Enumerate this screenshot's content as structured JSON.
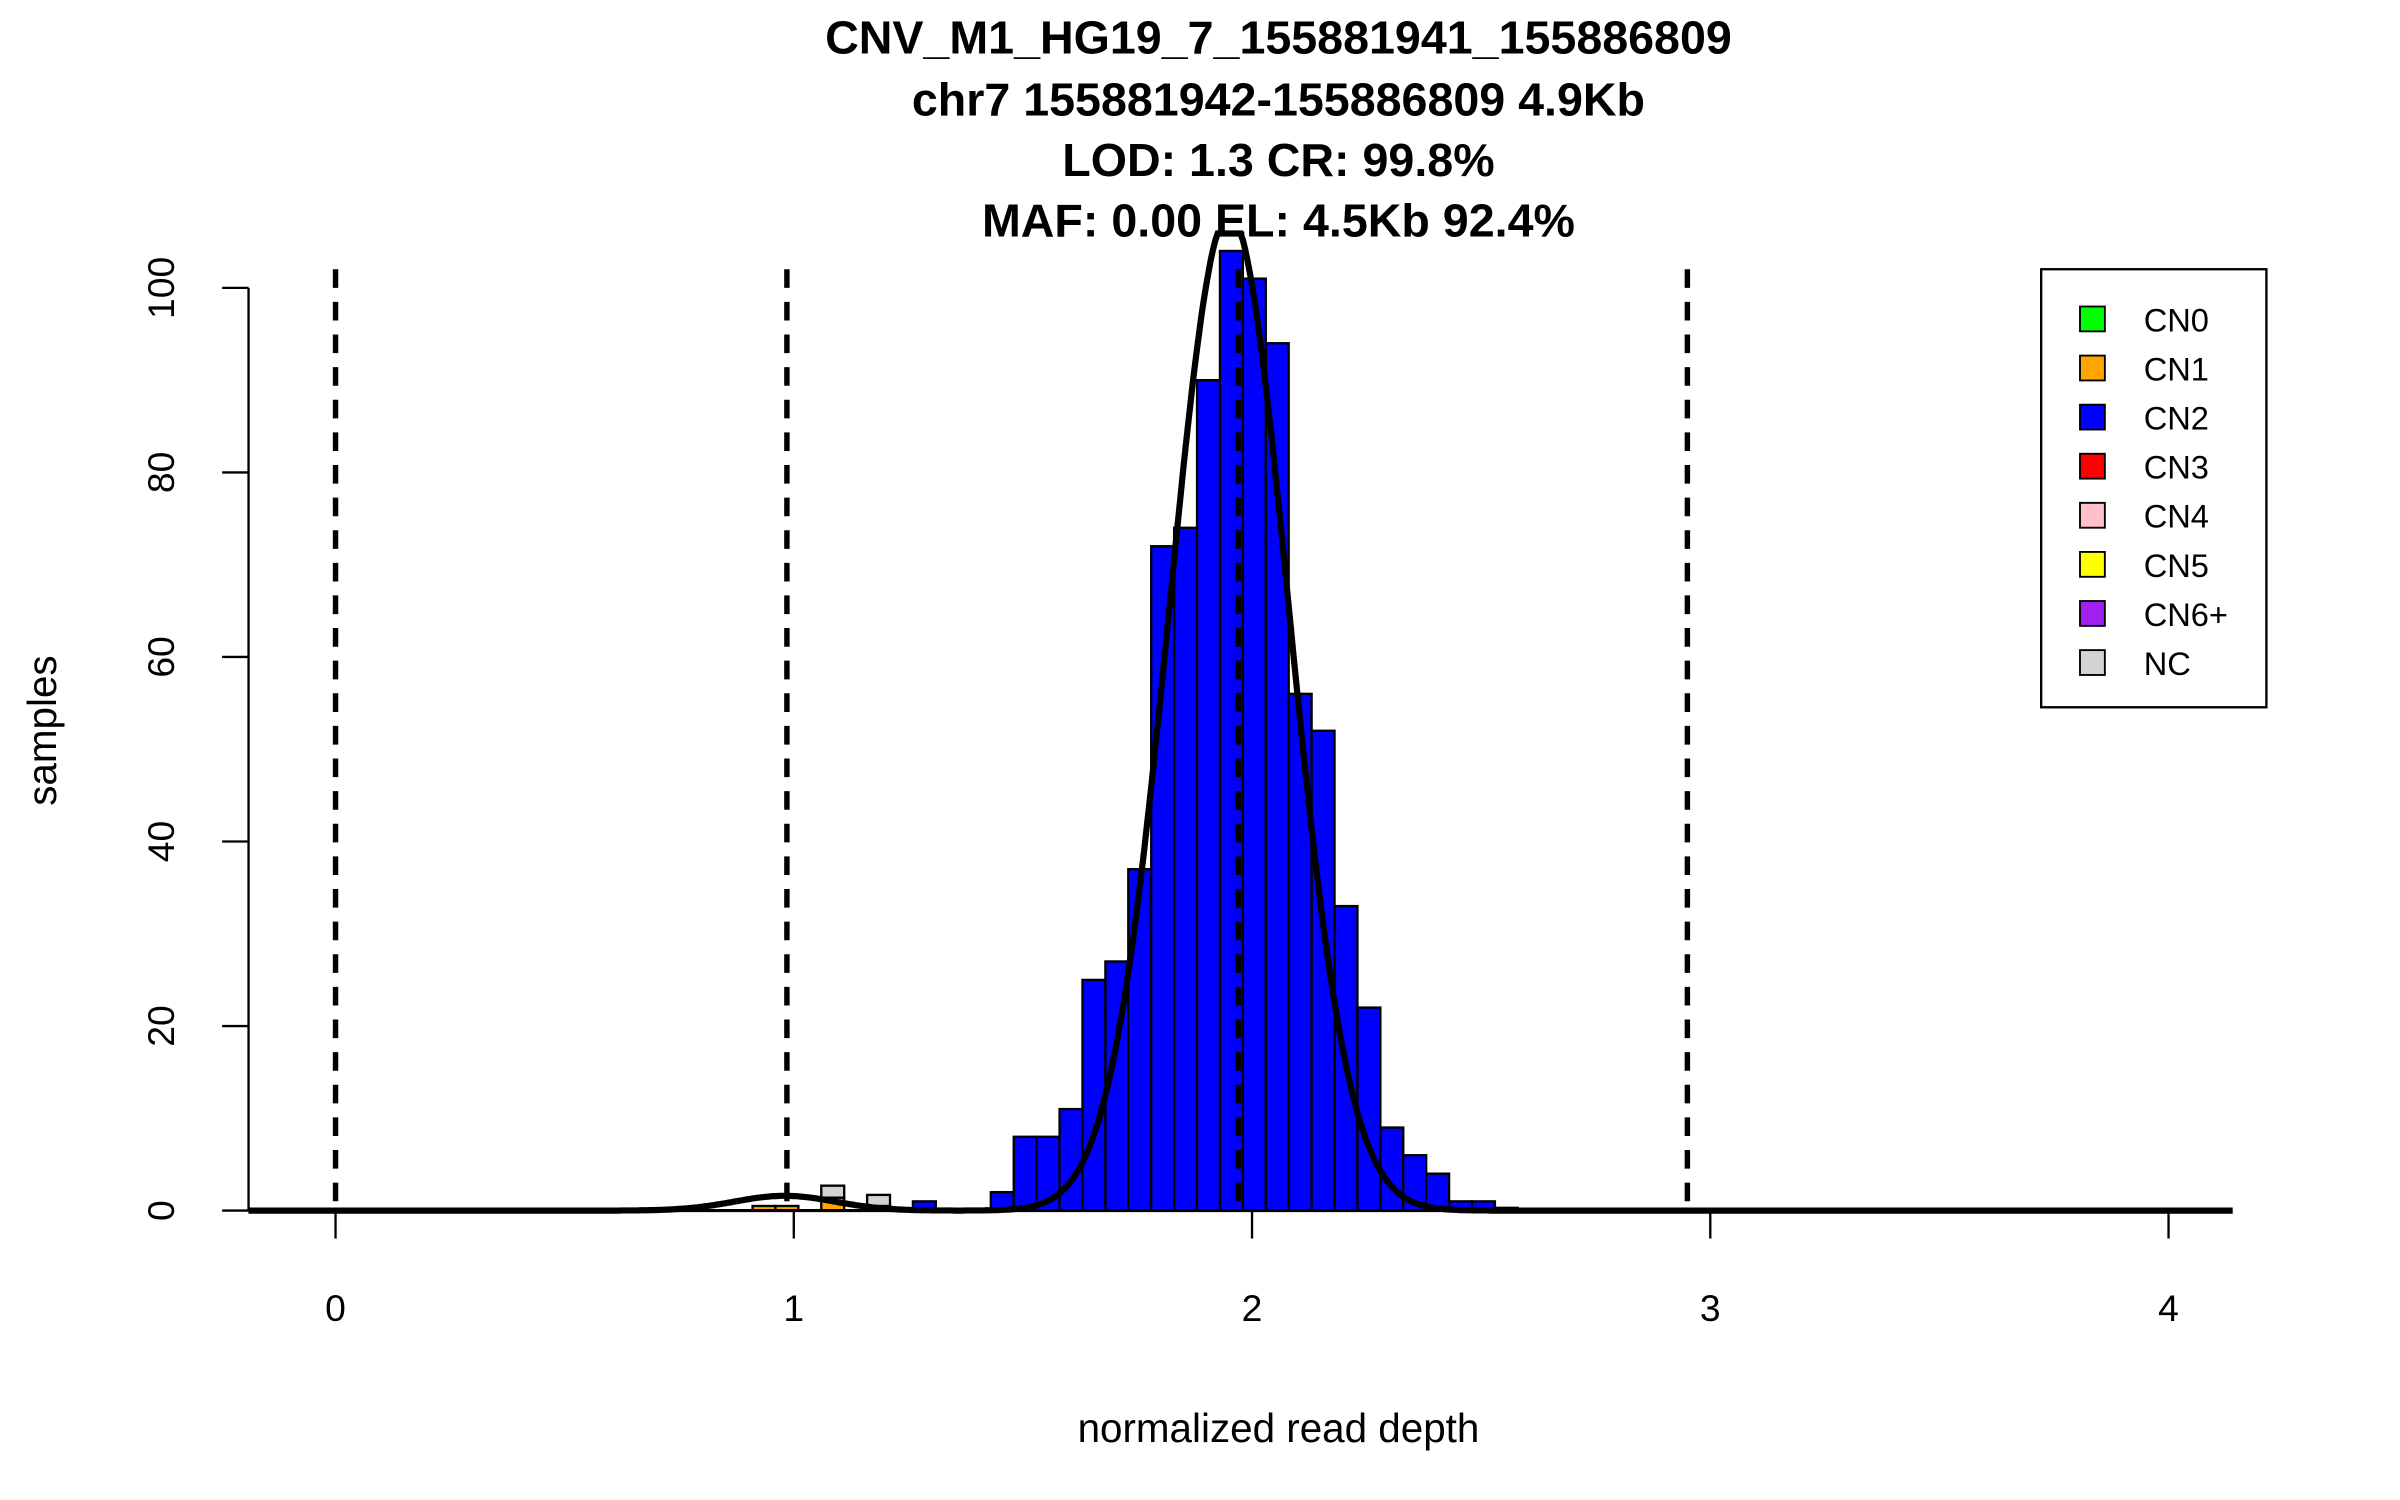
{
  "chart_data": {
    "type": "bar",
    "title_lines": [
      "CNV_M1_HG19_7_155881941_155886809",
      "chr7 155881942-155886809 4.9Kb",
      "LOD: 1.3 CR: 99.8%",
      "MAF: 0.00 EL: 4.5Kb 92.4%"
    ],
    "xlabel": "normalized read depth",
    "ylabel": "samples",
    "xlim": [
      -0.19,
      4.14
    ],
    "ylim": [
      0,
      100
    ],
    "xticks": [
      "0",
      "1",
      "2",
      "3",
      "4"
    ],
    "yticks": [
      "0",
      "20",
      "40",
      "60",
      "80",
      "100"
    ],
    "bin_width": 0.05,
    "bins": [
      {
        "x": 0.91,
        "CN1": 0.5,
        "CN2": 0,
        "NC": 0
      },
      {
        "x": 0.96,
        "CN1": 0.5,
        "CN2": 0,
        "NC": 0
      },
      {
        "x": 1.06,
        "CN1": 1.4,
        "CN2": 0,
        "NC": 1.3
      },
      {
        "x": 1.16,
        "CN1": 0.5,
        "CN2": 0,
        "NC": 1.2
      },
      {
        "x": 1.26,
        "CN1": 0,
        "CN2": 1,
        "NC": 0
      },
      {
        "x": 1.43,
        "CN1": 0,
        "CN2": 2,
        "NC": 0
      },
      {
        "x": 1.48,
        "CN1": 0,
        "CN2": 8,
        "NC": 0
      },
      {
        "x": 1.53,
        "CN1": 0,
        "CN2": 8,
        "NC": 0
      },
      {
        "x": 1.58,
        "CN1": 0,
        "CN2": 11,
        "NC": 0
      },
      {
        "x": 1.63,
        "CN1": 0,
        "CN2": 25,
        "NC": 0
      },
      {
        "x": 1.68,
        "CN1": 0,
        "CN2": 27,
        "NC": 0
      },
      {
        "x": 1.73,
        "CN1": 0,
        "CN2": 37,
        "NC": 0
      },
      {
        "x": 1.78,
        "CN1": 0,
        "CN2": 72,
        "NC": 0
      },
      {
        "x": 1.83,
        "CN1": 0,
        "CN2": 74,
        "NC": 0
      },
      {
        "x": 1.88,
        "CN1": 0,
        "CN2": 90,
        "NC": 0
      },
      {
        "x": 1.93,
        "CN1": 0,
        "CN2": 104,
        "NC": 0
      },
      {
        "x": 1.98,
        "CN1": 0,
        "CN2": 101,
        "NC": 0
      },
      {
        "x": 2.03,
        "CN1": 0,
        "CN2": 94,
        "NC": 0
      },
      {
        "x": 2.08,
        "CN1": 0,
        "CN2": 56,
        "NC": 0
      },
      {
        "x": 2.13,
        "CN1": 0,
        "CN2": 52,
        "NC": 0
      },
      {
        "x": 2.18,
        "CN1": 0,
        "CN2": 33,
        "NC": 0
      },
      {
        "x": 2.23,
        "CN1": 0,
        "CN2": 22,
        "NC": 0
      },
      {
        "x": 2.28,
        "CN1": 0,
        "CN2": 9,
        "NC": 0
      },
      {
        "x": 2.33,
        "CN1": 0,
        "CN2": 6,
        "NC": 0
      },
      {
        "x": 2.38,
        "CN1": 0,
        "CN2": 4,
        "NC": 0
      },
      {
        "x": 2.43,
        "CN1": 0,
        "CN2": 1,
        "NC": 0
      },
      {
        "x": 2.48,
        "CN1": 0,
        "CN2": 1,
        "NC": 0
      },
      {
        "x": 2.53,
        "CN1": 0,
        "CN2": 0.3,
        "NC": 0
      }
    ],
    "dashed_lines_x": [
      0,
      0.985,
      1.97,
      2.95
    ],
    "fit_curves": [
      {
        "mean": 1.95,
        "sd": 0.13,
        "peak": 108
      },
      {
        "mean": 0.98,
        "sd": 0.11,
        "peak": 1.6
      }
    ],
    "legend": {
      "position": "top-right",
      "entries": [
        {
          "label": "CN0",
          "color": "#00ff00"
        },
        {
          "label": "CN1",
          "color": "#ffa500"
        },
        {
          "label": "CN2",
          "color": "#0000ff"
        },
        {
          "label": "CN3",
          "color": "#ff0000"
        },
        {
          "label": "CN4",
          "color": "#ffc0cb"
        },
        {
          "label": "CN5",
          "color": "#ffff00"
        },
        {
          "label": "CN6+",
          "color": "#a020f0"
        },
        {
          "label": "NC",
          "color": "#d3d3d3"
        }
      ]
    }
  }
}
